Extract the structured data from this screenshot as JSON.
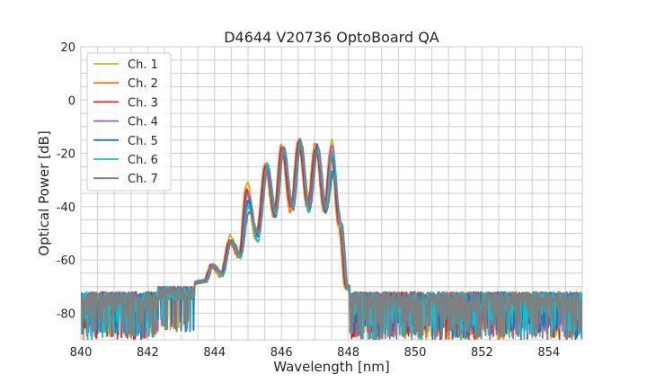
{
  "chart_data": {
    "type": "line",
    "title": "D4644 V20736 OptoBoard QA",
    "xlabel": "Wavelength [nm]",
    "ylabel": "Optical Power [dB]",
    "xlim": [
      840,
      855
    ],
    "ylim": [
      -90,
      20
    ],
    "xticks": [
      "840",
      "842",
      "844",
      "846",
      "848",
      "850",
      "852",
      "854"
    ],
    "yticks": [
      "20",
      "0",
      "-20",
      "-40",
      "-60",
      "-80"
    ],
    "grid": true,
    "legend_position": "upper-left",
    "noise_floor_db": [
      -90,
      -70
    ],
    "x": [
      840,
      843.0,
      843.7,
      843.93,
      844.2,
      844.47,
      844.75,
      844.98,
      845.27,
      845.55,
      845.8,
      846.03,
      846.3,
      846.54,
      846.8,
      847.05,
      847.3,
      847.51,
      847.75,
      847.95,
      848.2,
      855
    ],
    "series": [
      {
        "name": "Ch. 1",
        "color": "#bcbd22",
        "shift": 0.0,
        "values": [
          -72,
          -70,
          -68,
          -62,
          -65,
          -51,
          -58,
          -31,
          -50,
          -24,
          -42,
          -18,
          -40,
          -16,
          -41,
          -17,
          -40,
          -15,
          -46,
          -70,
          -72,
          -72
        ]
      },
      {
        "name": "Ch. 2",
        "color": "#ff7f0e",
        "shift": -0.04,
        "values": [
          -72,
          -70,
          -68,
          -62,
          -66,
          -53,
          -59,
          -33,
          -52,
          -24,
          -44,
          -17,
          -42,
          -15,
          -40,
          -16,
          -42,
          -18,
          -48,
          -71,
          -72,
          -72
        ]
      },
      {
        "name": "Ch. 3",
        "color": "#d62728",
        "shift": -0.02,
        "values": [
          -72,
          -70,
          -68,
          -62,
          -65,
          -53,
          -58,
          -34,
          -50,
          -25,
          -42,
          -18,
          -40,
          -16,
          -40,
          -18,
          -40,
          -20,
          -46,
          -70,
          -72,
          -72
        ]
      },
      {
        "name": "Ch. 4",
        "color": "#9467bd",
        "shift": 0.01,
        "values": [
          -72,
          -70,
          -68,
          -62,
          -65,
          -53,
          -58,
          -35,
          -50,
          -27,
          -43,
          -19,
          -39,
          -16,
          -39,
          -18,
          -42,
          -17,
          -47,
          -70,
          -72,
          -72
        ]
      },
      {
        "name": "Ch. 5",
        "color": "#1f77b4",
        "shift": 0.02,
        "values": [
          -72,
          -70,
          -68,
          -62,
          -65,
          -53,
          -58,
          -38,
          -51,
          -25,
          -44,
          -19,
          -40,
          -15,
          -42,
          -17,
          -42,
          -27,
          -46,
          -70,
          -72,
          -72
        ]
      },
      {
        "name": "Ch. 6",
        "color": "#17becf",
        "shift": 0.03,
        "values": [
          -72,
          -70,
          -68,
          -62,
          -66,
          -53,
          -59,
          -40,
          -53,
          -24,
          -43,
          -18,
          -40,
          -16,
          -42,
          -19,
          -40,
          -20,
          -47,
          -71,
          -72,
          -72
        ]
      },
      {
        "name": "Ch. 7",
        "color": "#7f7f7f",
        "shift": 0.05,
        "values": [
          -72,
          -70,
          -68,
          -62,
          -65,
          -53,
          -58,
          -42,
          -50,
          -26,
          -42,
          -18,
          -41,
          -16,
          -41,
          -18,
          -41,
          -28,
          -46,
          -70,
          -72,
          -72
        ]
      }
    ]
  }
}
